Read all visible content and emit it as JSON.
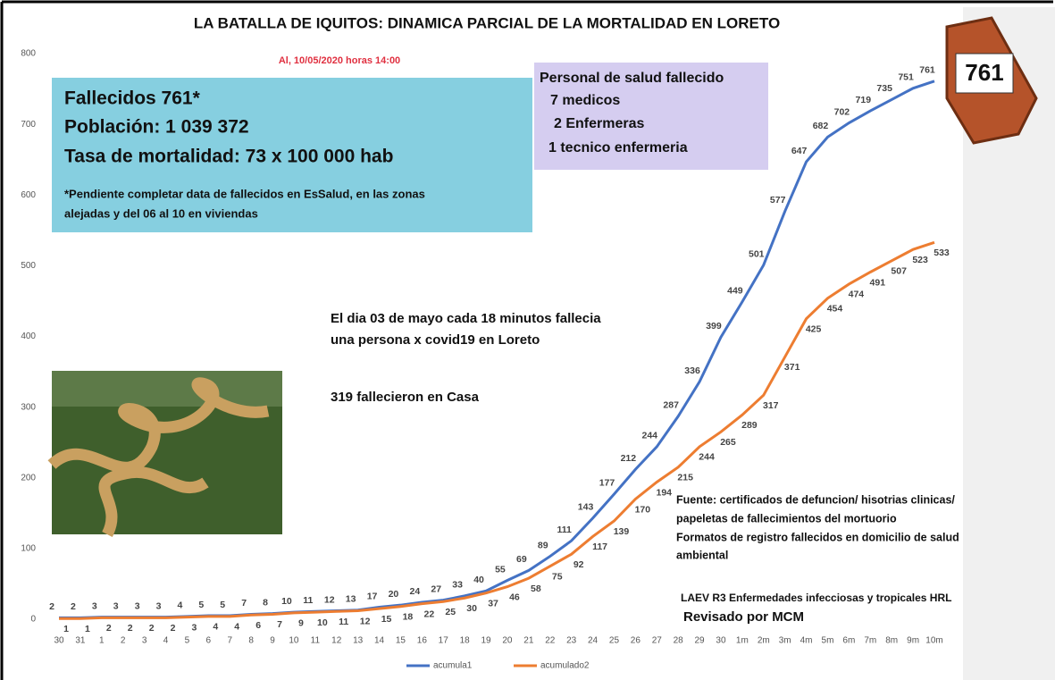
{
  "chart_data": {
    "type": "line",
    "title": "LA BATALLA DE IQUITOS: DINAMICA PARCIAL DE LA MORTALIDAD EN LORETO",
    "subtitle": "Al, 10/05/2020 horas 14:00",
    "categories": [
      "30",
      "31",
      "1",
      "2",
      "3",
      "4",
      "5",
      "6",
      "7",
      "8",
      "9",
      "10",
      "11",
      "12",
      "13",
      "14",
      "15",
      "16",
      "17",
      "18",
      "19",
      "20",
      "21",
      "22",
      "23",
      "24",
      "25",
      "26",
      "27",
      "28",
      "29",
      "30",
      "1m",
      "2m",
      "3m",
      "4m",
      "5m",
      "6m",
      "7m",
      "8m",
      "9m",
      "10m"
    ],
    "series": [
      {
        "name": "acumula1",
        "color": "#4472c4",
        "values": [
          2,
          2,
          3,
          3,
          3,
          3,
          4,
          5,
          5,
          7,
          8,
          10,
          11,
          12,
          13,
          17,
          20,
          24,
          27,
          33,
          40,
          55,
          69,
          89,
          111,
          143,
          177,
          212,
          244,
          287,
          336,
          399,
          449,
          501,
          577,
          647,
          682,
          702,
          719,
          735,
          751,
          761
        ]
      },
      {
        "name": "acumulado2",
        "color": "#ed7d31",
        "values": [
          1,
          1,
          2,
          2,
          2,
          2,
          3,
          4,
          4,
          6,
          7,
          9,
          10,
          11,
          12,
          15,
          18,
          22,
          25,
          30,
          37,
          46,
          58,
          75,
          92,
          117,
          139,
          170,
          194,
          215,
          244,
          265,
          289,
          317,
          371,
          425,
          454,
          474,
          491,
          507,
          523,
          533
        ]
      }
    ],
    "ylim": [
      0,
      800
    ],
    "yticks": [
      0,
      100,
      200,
      300,
      400,
      500,
      600,
      700,
      800
    ],
    "grid": false,
    "legend": "bottom",
    "annotations": {
      "summary": [
        "Fallecidos 761*",
        "Población: 1 039 372",
        "Tasa de mortalidad: 73 x 100 000 hab"
      ],
      "summary_note": [
        "*Pendiente completar data de fallecidos en EsSalud, en las zonas",
        "alejadas y del 06 al 10 en viviendas"
      ],
      "staff": [
        "Personal de salud fallecido",
        "7 medicos",
        "2 Enfermeras",
        "1 tecnico enfermeria"
      ],
      "rate": [
        "El dia 03 de mayo cada 18 minutos fallecia",
        "una persona x covid19 en Loreto"
      ],
      "home": "319 fallecieron en Casa",
      "source": [
        "Fuente: certificados de defuncion/ hisotrias clinicas/",
        "papeletas de fallecimientos del mortuorio",
        "Formatos de registro fallecidos en domicilio de salud",
        "ambiental"
      ],
      "author": "LAEV R3 Enfermedades infecciosas y tropicales HRL",
      "review": "Revisado por MCM",
      "badge": "761"
    }
  }
}
